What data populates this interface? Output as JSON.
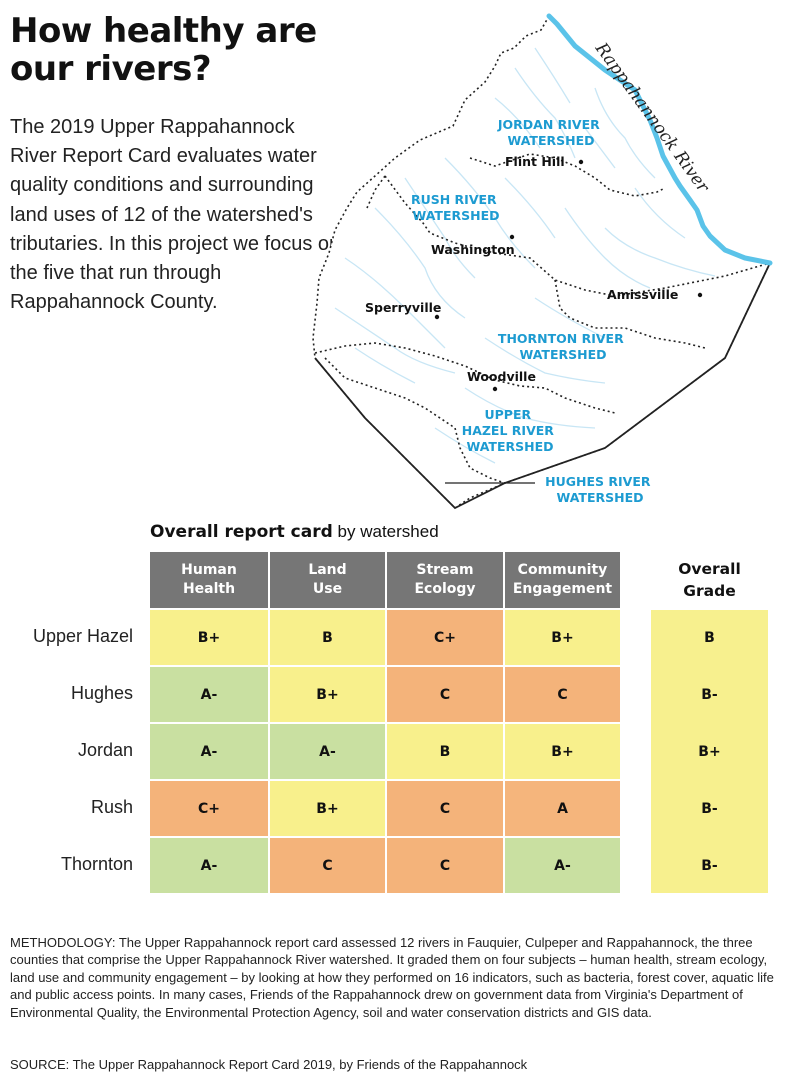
{
  "title": "How healthy are our rivers?",
  "intro": "The 2019 Upper Rappahannock River Report Card evaluates water quality conditions and surrounding land uses of 12 of the watershed's tributaries. In this project we focus on the five that run through Rappahannock County.",
  "map": {
    "river_name": "Rappahannock River",
    "watersheds": {
      "jordan": [
        "JORDAN RIVER",
        "WATERSHED"
      ],
      "rush": [
        "RUSH RIVER",
        "WATERSHED"
      ],
      "thornton": [
        "THORNTON RIVER",
        "WATERSHED"
      ],
      "hazel": [
        "UPPER",
        "HAZEL RIVER",
        "WATERSHED"
      ],
      "hughes": [
        "HUGHES RIVER",
        "WATERSHED"
      ]
    },
    "towns": {
      "flint_hill": "Flint Hill",
      "washington": "Washington",
      "amissville": "Amissville",
      "sperryville": "Sperryville",
      "woodville": "Woodville"
    },
    "colors": {
      "river": "#5bc3e9",
      "stream": "#c8e6f5",
      "label": "#1d9bd1",
      "boundary": "#222222"
    }
  },
  "chart_data": {
    "type": "table",
    "title": "Overall report card",
    "subtitle": "by watershed",
    "columns": [
      [
        "Human",
        "Health"
      ],
      [
        "Land",
        "Use"
      ],
      [
        "Stream",
        "Ecology"
      ],
      [
        "Community",
        "Engagement"
      ]
    ],
    "overall_header": [
      "Overall",
      "Grade"
    ],
    "rows": [
      {
        "name": "Upper Hazel",
        "grades": [
          "B+",
          "B",
          "C+",
          "B+"
        ],
        "overall": "B"
      },
      {
        "name": "Hughes",
        "grades": [
          "A-",
          "B+",
          "C",
          "C"
        ],
        "overall": "B-"
      },
      {
        "name": "Jordan",
        "grades": [
          "A-",
          "A-",
          "B",
          "B+"
        ],
        "overall": "B+"
      },
      {
        "name": "Rush",
        "grades": [
          "C+",
          "B+",
          "C",
          "A"
        ],
        "overall": "B-"
      },
      {
        "name": "Thornton",
        "grades": [
          "A-",
          "C",
          "C",
          "A-"
        ],
        "overall": "B-"
      }
    ],
    "grade_colors": {
      "A": "#f5b57c",
      "A-": "#c9e0a1",
      "B+": "#f8f08c",
      "B": "#f8f08c",
      "B-": "#f8f08c",
      "C+": "#f4b37a",
      "C": "#f4b37a"
    },
    "header_color": "#767676",
    "overall_color": "#f7f08e"
  },
  "methodology": "METHODOLOGY: The Upper Rappahannock report card assessed 12 rivers in Fauquier, Culpeper and Rappahannock, the three counties that comprise the Upper Rappahannock River watershed. It graded them on four subjects – human health, stream ecology, land use and community engagement – by looking at how they performed on 16 indicators, such as bacteria, forest cover, aquatic life and public access points. In many cases, Friends of the Rappahannock drew on government data from Virginia's Department of Environmental Quality, the Environmental Protection Agency, soil and water conservation districts and GIS data.",
  "source": "SOURCE: The Upper Rappahannock Report Card 2019, by Friends of the Rappahannock"
}
